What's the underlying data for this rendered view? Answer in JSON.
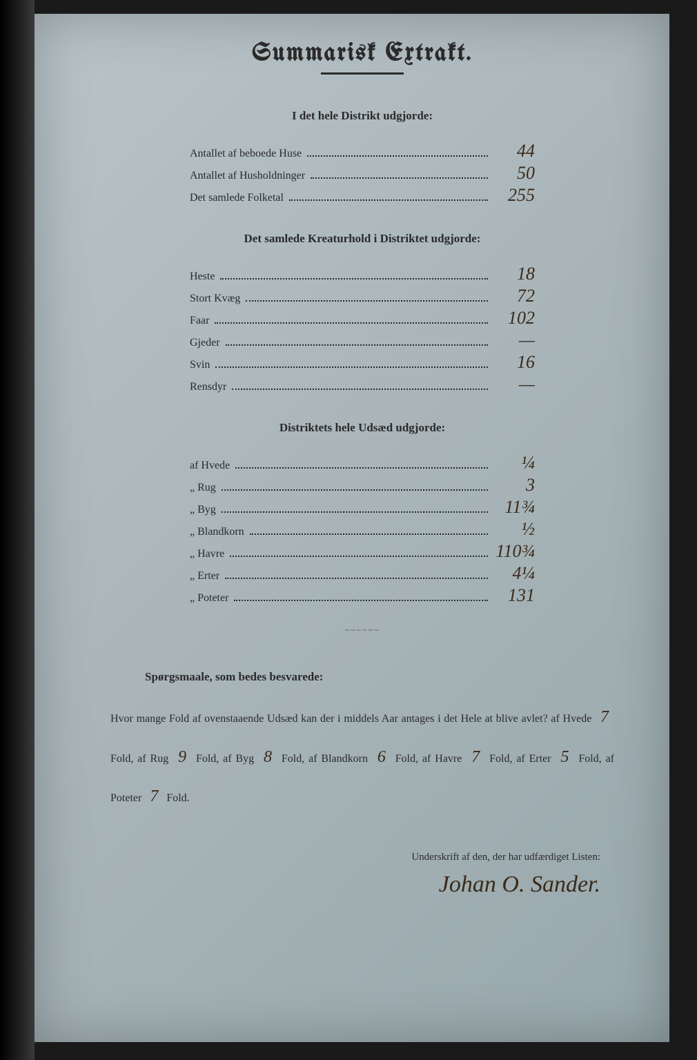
{
  "title": "Summarisk Extrakt.",
  "section1": {
    "heading": "I det hele Distrikt udgjorde:",
    "rows": [
      {
        "label": "Antallet af beboede Huse",
        "value": "44"
      },
      {
        "label": "Antallet af Husholdninger",
        "value": "50"
      },
      {
        "label": "Det samlede Folketal",
        "value": "255"
      }
    ]
  },
  "section2": {
    "heading": "Det samlede Kreaturhold i Distriktet udgjorde:",
    "rows": [
      {
        "label": "Heste",
        "value": "18"
      },
      {
        "label": "Stort Kvæg",
        "value": "72"
      },
      {
        "label": "Faar",
        "value": "102"
      },
      {
        "label": "Gjeder",
        "value": "—"
      },
      {
        "label": "Svin",
        "value": "16"
      },
      {
        "label": "Rensdyr",
        "value": "—"
      }
    ]
  },
  "section3": {
    "heading": "Distriktets hele Udsæd udgjorde:",
    "rows": [
      {
        "label": "af Hvede",
        "value": "¼"
      },
      {
        "label": "„ Rug",
        "value": "3"
      },
      {
        "label": "„ Byg",
        "value": "11¾"
      },
      {
        "label": "„ Blandkorn",
        "value": "½"
      },
      {
        "label": "„ Havre",
        "value": "110¾"
      },
      {
        "label": "„ Erter",
        "value": "4¼"
      },
      {
        "label": "„ Poteter",
        "value": "131"
      }
    ]
  },
  "questions": {
    "heading": "Spørgsmaale, som bedes besvarede:",
    "intro": "Hvor mange Fold af ovenstaaende Udsæd kan der i middels Aar antages i det Hele at blive avlet?",
    "items": [
      {
        "pre": "af Hvede",
        "val": "7",
        "post": "Fold,"
      },
      {
        "pre": "af Rug",
        "val": "9",
        "post": "Fold, af Byg"
      },
      {
        "pre": "",
        "val": "8",
        "post": "Fold, af Blandkorn"
      },
      {
        "pre": "",
        "val": "6",
        "post": "Fold, af Havre"
      },
      {
        "pre": "",
        "val": "7",
        "post": "Fold, af Erter"
      },
      {
        "pre": "",
        "val": "5",
        "post": "Fold,"
      },
      {
        "pre": "af Poteter",
        "val": "7",
        "post": "Fold."
      }
    ]
  },
  "signature": {
    "label": "Underskrift af den, der har udfærdiget Listen:",
    "name": "Johan O. Sander."
  }
}
